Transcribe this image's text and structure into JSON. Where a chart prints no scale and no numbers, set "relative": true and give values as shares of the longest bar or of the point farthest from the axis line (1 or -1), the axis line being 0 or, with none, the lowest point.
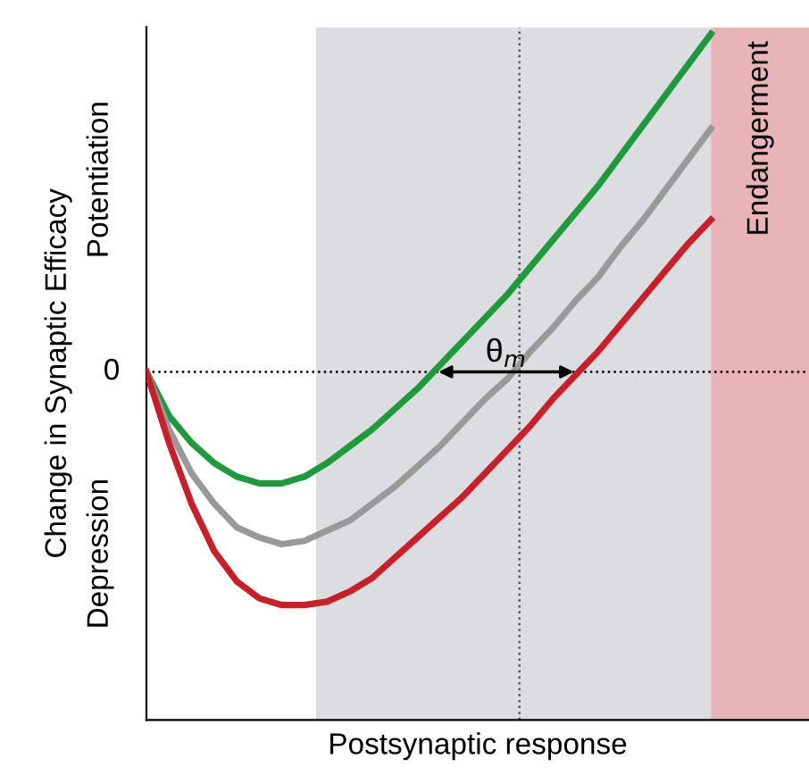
{
  "chart_data": {
    "type": "line",
    "relative": true,
    "xlabel": "Postsynaptic response",
    "ylabel": "Change in Synaptic Efficacy",
    "categories": [
      null,
      null,
      null,
      null,
      null,
      null,
      null,
      null,
      null,
      null,
      null,
      null,
      null,
      null,
      null,
      null,
      null,
      null,
      null,
      null,
      null,
      null,
      null,
      null,
      null,
      null
    ],
    "series": [
      {
        "color": "#1e9a3c",
        "values": [
          0,
          -0.13,
          -0.21,
          -0.27,
          -0.31,
          -0.33,
          -0.33,
          -0.31,
          -0.27,
          -0.22,
          -0.17,
          -0.11,
          -0.05,
          0.02,
          0.09,
          0.16,
          0.23,
          0.31,
          0.39,
          0.47,
          0.55,
          0.64,
          0.73,
          0.82,
          0.91,
          1
        ]
      },
      {
        "color": "#999999",
        "values": [
          0,
          -0.17,
          -0.3,
          -0.39,
          -0.46,
          -0.49,
          -0.51,
          -0.5,
          -0.47,
          -0.44,
          -0.39,
          -0.34,
          -0.28,
          -0.22,
          -0.15,
          -0.08,
          -0.02,
          0.06,
          0.13,
          0.21,
          0.28,
          0.37,
          0.45,
          0.54,
          0.63,
          0.72
        ]
      },
      {
        "color": "#c8202a",
        "values": [
          0,
          -0.21,
          -0.39,
          -0.53,
          -0.62,
          -0.67,
          -0.69,
          -0.69,
          -0.68,
          -0.65,
          -0.61,
          -0.55,
          -0.49,
          -0.43,
          -0.37,
          -0.3,
          -0.23,
          -0.16,
          -0.08,
          -0.01,
          0.06,
          0.14,
          0.22,
          0.3,
          0.38,
          0.45
        ]
      }
    ],
    "ref_lines": [
      {
        "axis": "y",
        "value": 0,
        "label": "0",
        "line_style": "dotted",
        "color": "#000000"
      }
    ],
    "annotations": [
      "θ$_{m}$",
      "Potentiation",
      "Depression",
      "Endangerment"
    ],
    "marker": "none",
    "line_style": "solid"
  }
}
